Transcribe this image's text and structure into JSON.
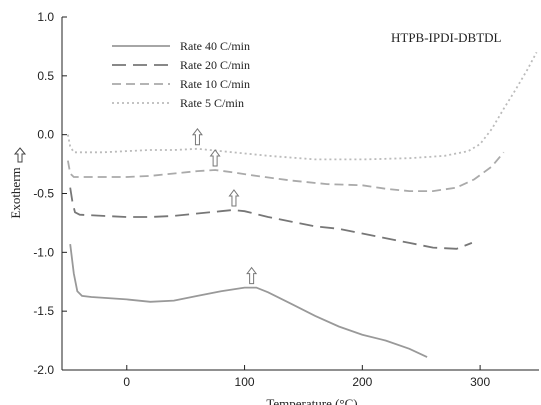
{
  "chart_data": {
    "type": "line",
    "title": "",
    "annotation": "HTPB-IPDI-DBTDL",
    "xlabel": "Temperature (°C)",
    "ylabel": "Exotherm",
    "ylabel_icon": "up-arrow-icon",
    "xlim": [
      -55,
      350
    ],
    "ylim": [
      -2.0,
      1.0
    ],
    "xticks": [
      0,
      100,
      200,
      300
    ],
    "yticks": [
      -2.0,
      -1.5,
      -1.0,
      -0.5,
      0.0,
      0.5,
      1.0
    ],
    "xtick_labels": [
      "0",
      "100",
      "200",
      "300"
    ],
    "ytick_labels": [
      "-2.0",
      "-1.5",
      "-1.0",
      "-0.5",
      "0.0",
      "0.5",
      "1.0"
    ],
    "grid": false,
    "legend_position": "top-left",
    "peak_marker_icon": "up-arrow-icon",
    "series": [
      {
        "name": "Rate 40 C/min",
        "color": "#999999",
        "dash": "solid",
        "points": [
          [
            -48,
            -0.93
          ],
          [
            -45,
            -1.18
          ],
          [
            -42,
            -1.33
          ],
          [
            -38,
            -1.37
          ],
          [
            -30,
            -1.38
          ],
          [
            0,
            -1.4
          ],
          [
            20,
            -1.42
          ],
          [
            40,
            -1.41
          ],
          [
            60,
            -1.37
          ],
          [
            80,
            -1.33
          ],
          [
            100,
            -1.3
          ],
          [
            110,
            -1.3
          ],
          [
            120,
            -1.34
          ],
          [
            140,
            -1.44
          ],
          [
            160,
            -1.54
          ],
          [
            180,
            -1.63
          ],
          [
            200,
            -1.7
          ],
          [
            220,
            -1.75
          ],
          [
            240,
            -1.82
          ],
          [
            255,
            -1.89
          ]
        ],
        "peak": [
          106,
          -1.3
        ]
      },
      {
        "name": "Rate 20 C/min",
        "color": "#777777",
        "dash": "long",
        "points": [
          [
            -48,
            -0.45
          ],
          [
            -46,
            -0.58
          ],
          [
            -44,
            -0.66
          ],
          [
            -40,
            -0.68
          ],
          [
            -20,
            -0.69
          ],
          [
            0,
            -0.7
          ],
          [
            20,
            -0.7
          ],
          [
            40,
            -0.69
          ],
          [
            60,
            -0.67
          ],
          [
            80,
            -0.65
          ],
          [
            90,
            -0.64
          ],
          [
            100,
            -0.65
          ],
          [
            120,
            -0.7
          ],
          [
            140,
            -0.74
          ],
          [
            160,
            -0.78
          ],
          [
            180,
            -0.8
          ],
          [
            200,
            -0.84
          ],
          [
            220,
            -0.88
          ],
          [
            240,
            -0.92
          ],
          [
            260,
            -0.96
          ],
          [
            280,
            -0.97
          ],
          [
            293,
            -0.92
          ]
        ],
        "peak": [
          91,
          -0.64
        ]
      },
      {
        "name": "Rate 10 C/min",
        "color": "#aaaaaa",
        "dash": "medium",
        "points": [
          [
            -50,
            -0.22
          ],
          [
            -48,
            -0.33
          ],
          [
            -45,
            -0.36
          ],
          [
            -20,
            -0.36
          ],
          [
            0,
            -0.36
          ],
          [
            20,
            -0.35
          ],
          [
            40,
            -0.33
          ],
          [
            60,
            -0.31
          ],
          [
            75,
            -0.3
          ],
          [
            90,
            -0.32
          ],
          [
            110,
            -0.35
          ],
          [
            140,
            -0.39
          ],
          [
            170,
            -0.42
          ],
          [
            200,
            -0.43
          ],
          [
            220,
            -0.46
          ],
          [
            240,
            -0.48
          ],
          [
            260,
            -0.48
          ],
          [
            280,
            -0.45
          ],
          [
            295,
            -0.38
          ],
          [
            310,
            -0.27
          ],
          [
            320,
            -0.15
          ]
        ],
        "peak": [
          75,
          -0.3
        ]
      },
      {
        "name": "Rate 5 C/min",
        "color": "#bbbbbb",
        "dash": "dotted",
        "points": [
          [
            -50,
            0.0
          ],
          [
            -48,
            -0.1
          ],
          [
            -45,
            -0.15
          ],
          [
            -20,
            -0.15
          ],
          [
            0,
            -0.14
          ],
          [
            20,
            -0.13
          ],
          [
            40,
            -0.13
          ],
          [
            60,
            -0.12
          ],
          [
            80,
            -0.14
          ],
          [
            120,
            -0.18
          ],
          [
            160,
            -0.21
          ],
          [
            200,
            -0.21
          ],
          [
            240,
            -0.2
          ],
          [
            270,
            -0.18
          ],
          [
            290,
            -0.14
          ],
          [
            300,
            -0.08
          ],
          [
            310,
            0.05
          ],
          [
            320,
            0.22
          ],
          [
            330,
            0.38
          ],
          [
            340,
            0.55
          ],
          [
            348,
            0.7
          ]
        ],
        "peak": [
          60,
          -0.12
        ]
      }
    ]
  }
}
